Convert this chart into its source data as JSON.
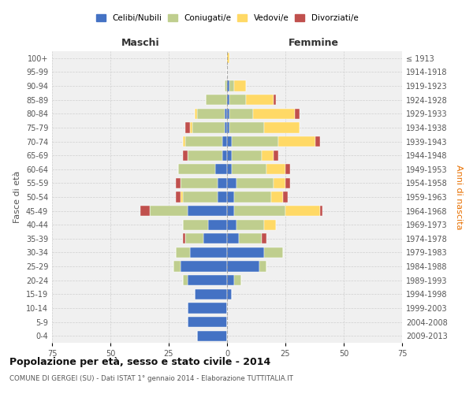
{
  "age_groups": [
    "0-4",
    "5-9",
    "10-14",
    "15-19",
    "20-24",
    "25-29",
    "30-34",
    "35-39",
    "40-44",
    "45-49",
    "50-54",
    "55-59",
    "60-64",
    "65-69",
    "70-74",
    "75-79",
    "80-84",
    "85-89",
    "90-94",
    "95-99",
    "100+"
  ],
  "birth_years": [
    "2009-2013",
    "2004-2008",
    "1999-2003",
    "1994-1998",
    "1989-1993",
    "1984-1988",
    "1979-1983",
    "1974-1978",
    "1969-1973",
    "1964-1968",
    "1959-1963",
    "1954-1958",
    "1949-1953",
    "1944-1948",
    "1939-1943",
    "1934-1938",
    "1929-1933",
    "1924-1928",
    "1919-1923",
    "1914-1918",
    "≤ 1913"
  ],
  "males": {
    "celibi": [
      13,
      17,
      17,
      14,
      17,
      20,
      16,
      10,
      8,
      17,
      4,
      4,
      5,
      2,
      2,
      1,
      1,
      0,
      0,
      0,
      0
    ],
    "coniugati": [
      0,
      0,
      0,
      0,
      2,
      3,
      6,
      8,
      11,
      16,
      15,
      16,
      16,
      15,
      16,
      14,
      12,
      9,
      1,
      0,
      0
    ],
    "vedovi": [
      0,
      0,
      0,
      0,
      0,
      0,
      0,
      0,
      0,
      0,
      1,
      0,
      0,
      0,
      1,
      1,
      1,
      0,
      0,
      0,
      0
    ],
    "divorziati": [
      0,
      0,
      0,
      0,
      0,
      0,
      0,
      1,
      0,
      4,
      2,
      2,
      0,
      2,
      0,
      2,
      0,
      0,
      0,
      0,
      0
    ]
  },
  "females": {
    "nubili": [
      0,
      0,
      0,
      2,
      3,
      14,
      16,
      5,
      4,
      3,
      3,
      4,
      2,
      2,
      2,
      1,
      1,
      1,
      1,
      0,
      0
    ],
    "coniugate": [
      0,
      0,
      0,
      0,
      3,
      3,
      8,
      10,
      12,
      22,
      16,
      16,
      15,
      13,
      20,
      15,
      10,
      7,
      2,
      0,
      0
    ],
    "vedove": [
      0,
      0,
      0,
      0,
      0,
      0,
      0,
      0,
      5,
      15,
      5,
      5,
      8,
      5,
      16,
      15,
      18,
      12,
      5,
      0,
      1
    ],
    "divorziate": [
      0,
      0,
      0,
      0,
      0,
      0,
      0,
      2,
      0,
      1,
      2,
      2,
      2,
      2,
      2,
      0,
      2,
      1,
      0,
      0,
      0
    ]
  },
  "colors": {
    "celibi_nubili": "#4472C4",
    "coniugati": "#BFCE8E",
    "vedovi": "#FFD966",
    "divorziati": "#C0504D"
  },
  "title": "Popolazione per età, sesso e stato civile - 2014",
  "subtitle": "COMUNE DI GERGEI (SU) - Dati ISTAT 1° gennaio 2014 - Elaborazione TUTTITALIA.IT",
  "xlabel_left": "Maschi",
  "xlabel_right": "Femmine",
  "ylabel_left": "Fasce di età",
  "ylabel_right": "Anni di nascita",
  "xlim": 75,
  "legend_labels": [
    "Celibi/Nubili",
    "Coniugati/e",
    "Vedovi/e",
    "Divorziati/e"
  ],
  "background_color": "#f0f0f0",
  "grid_color": "#cccccc"
}
